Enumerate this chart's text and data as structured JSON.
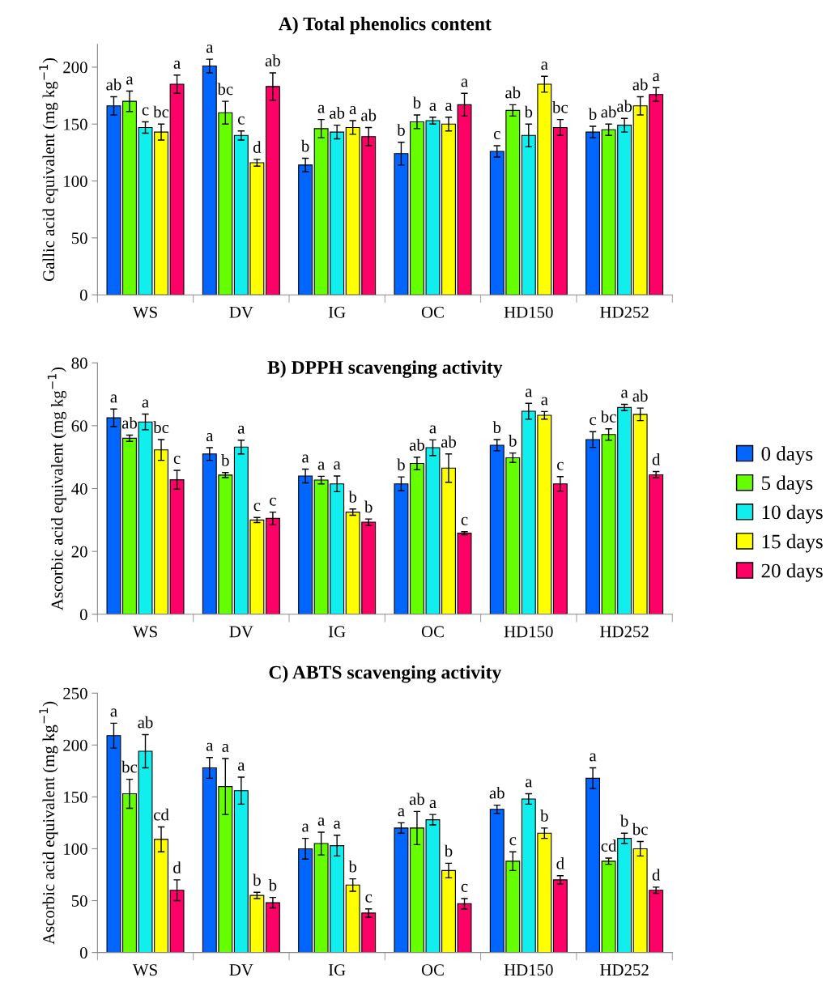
{
  "chart_data": [
    {
      "type": "bar",
      "title": "A) Total phenolics content",
      "ylabel": "Gallic acid equivalent (mg kg$^{−1}$)",
      "categories": [
        "WS",
        "DV",
        "IG",
        "OC",
        "HD150",
        "HD252"
      ],
      "ylim": [
        0,
        220
      ],
      "yticks": [
        0,
        50,
        100,
        150,
        200
      ],
      "legend": false,
      "series": [
        {
          "color": "#0066ff",
          "values": [
            166,
            201,
            114,
            124,
            126,
            143
          ],
          "errors": [
            8,
            6,
            6,
            10,
            5,
            5
          ],
          "value_labels": [
            "ab",
            "a",
            "b",
            "b",
            "c",
            "b"
          ]
        },
        {
          "color": "#66ff00",
          "values": [
            170,
            160,
            146,
            152,
            162,
            145
          ],
          "errors": [
            9,
            10,
            8,
            6,
            5,
            5
          ],
          "value_labels": [
            "a",
            "bc",
            "a",
            "b",
            "ab",
            "ab"
          ]
        },
        {
          "color": "#11eeee",
          "values": [
            147,
            140,
            143,
            153,
            140,
            149
          ],
          "errors": [
            5,
            4,
            6,
            3,
            10,
            6
          ],
          "value_labels": [
            "c",
            "c",
            "ab",
            "a",
            "b",
            "ab"
          ]
        },
        {
          "color": "#ffff00",
          "values": [
            143,
            116,
            147,
            150,
            185,
            166
          ],
          "errors": [
            7,
            3,
            6,
            6,
            7,
            8
          ],
          "value_labels": [
            "bc",
            "d",
            "a",
            "a",
            "a",
            "ab"
          ]
        },
        {
          "color": "#ff0066",
          "values": [
            185,
            183,
            139,
            167,
            147,
            176
          ],
          "errors": [
            8,
            12,
            8,
            10,
            7,
            6
          ],
          "value_labels": [
            "a",
            "ab",
            "ab",
            "a",
            "bc",
            "a"
          ]
        }
      ]
    },
    {
      "type": "bar",
      "title": "B) DPPH scavenging activity",
      "ylabel": "Ascorbic acid equivalent (mg kg$^{−1}$)",
      "categories": [
        "WS",
        "DV",
        "IG",
        "OC",
        "HD150",
        "HD252"
      ],
      "ylim": [
        0,
        80
      ],
      "yticks": [
        0,
        20,
        40,
        60,
        80
      ],
      "legend": "right",
      "series": [
        {
          "name": "0 days",
          "color": "#0066ff",
          "values": [
            62.5,
            51,
            44,
            41.5,
            53.8,
            55.6
          ],
          "errors": [
            2.8,
            2,
            2.2,
            2.2,
            1.8,
            2.5
          ],
          "value_labels": [
            "a",
            "a",
            "a",
            "b",
            "b",
            "c"
          ]
        },
        {
          "name": "5 days",
          "color": "#66ff00",
          "values": [
            56,
            44.3,
            42.7,
            48,
            49.8,
            57.2
          ],
          "errors": [
            1,
            0.8,
            1.2,
            2,
            1.5,
            1.8
          ],
          "value_labels": [
            "ab",
            "b",
            "a",
            "ab",
            "b",
            "bc"
          ]
        },
        {
          "name": "10 days",
          "color": "#11eeee",
          "values": [
            61.2,
            53.2,
            41.5,
            53,
            64.6,
            65.8
          ],
          "errors": [
            2.5,
            2.2,
            2.5,
            2.5,
            2.5,
            1
          ],
          "value_labels": [
            "a",
            "a",
            "a",
            "a",
            "a",
            "a"
          ]
        },
        {
          "name": "15 days",
          "color": "#ffff00",
          "values": [
            52.3,
            30,
            32.5,
            46.5,
            63.3,
            63.6
          ],
          "errors": [
            3.3,
            0.8,
            1,
            4.5,
            1.2,
            2
          ],
          "value_labels": [
            "bc",
            "c",
            "b",
            "ab",
            "a",
            "ab"
          ]
        },
        {
          "name": "20 days",
          "color": "#ff0066",
          "values": [
            42.8,
            30.5,
            29.3,
            25.8,
            41.5,
            44.4
          ],
          "errors": [
            3,
            2,
            1,
            0.5,
            2.3,
            1
          ],
          "value_labels": [
            "c",
            "c",
            "b",
            "c",
            "c",
            "d"
          ]
        }
      ]
    },
    {
      "type": "bar",
      "title": "C) ABTS scavenging activity",
      "ylabel": "Ascorbic acid equivalent (mg kg$^{−1}$)",
      "categories": [
        "WS",
        "DV",
        "IG",
        "OC",
        "HD150",
        "HD252"
      ],
      "ylim": [
        0,
        250
      ],
      "yticks": [
        0,
        50,
        100,
        150,
        200,
        250
      ],
      "legend": false,
      "series": [
        {
          "color": "#0066ff",
          "values": [
            209,
            178,
            100,
            120,
            138,
            168
          ],
          "errors": [
            12,
            10,
            10,
            5,
            4,
            10
          ],
          "value_labels": [
            "a",
            "a",
            "a",
            "a",
            "ab",
            "a"
          ]
        },
        {
          "color": "#66ff00",
          "values": [
            153,
            160,
            105,
            120,
            88,
            88
          ],
          "errors": [
            14,
            27,
            11,
            16,
            9,
            3
          ],
          "value_labels": [
            "bc",
            "a",
            "a",
            "ab",
            "c",
            "cd"
          ]
        },
        {
          "color": "#11eeee",
          "values": [
            194,
            156,
            103,
            128,
            148,
            110
          ],
          "errors": [
            16,
            13,
            10,
            5,
            5,
            5
          ],
          "value_labels": [
            "ab",
            "a",
            "a",
            "a",
            "a",
            "b"
          ]
        },
        {
          "color": "#ffff00",
          "values": [
            109,
            55,
            65,
            79,
            115,
            100
          ],
          "errors": [
            12,
            3,
            6,
            7,
            5,
            7
          ],
          "value_labels": [
            "cd",
            "b",
            "b",
            "b",
            "b",
            "bc"
          ]
        },
        {
          "color": "#ff0066",
          "values": [
            60,
            48,
            38,
            47,
            70,
            60
          ],
          "errors": [
            10,
            5,
            4,
            5,
            4,
            3
          ],
          "value_labels": [
            "d",
            "b",
            "c",
            "c",
            "d",
            "d"
          ]
        }
      ]
    }
  ]
}
